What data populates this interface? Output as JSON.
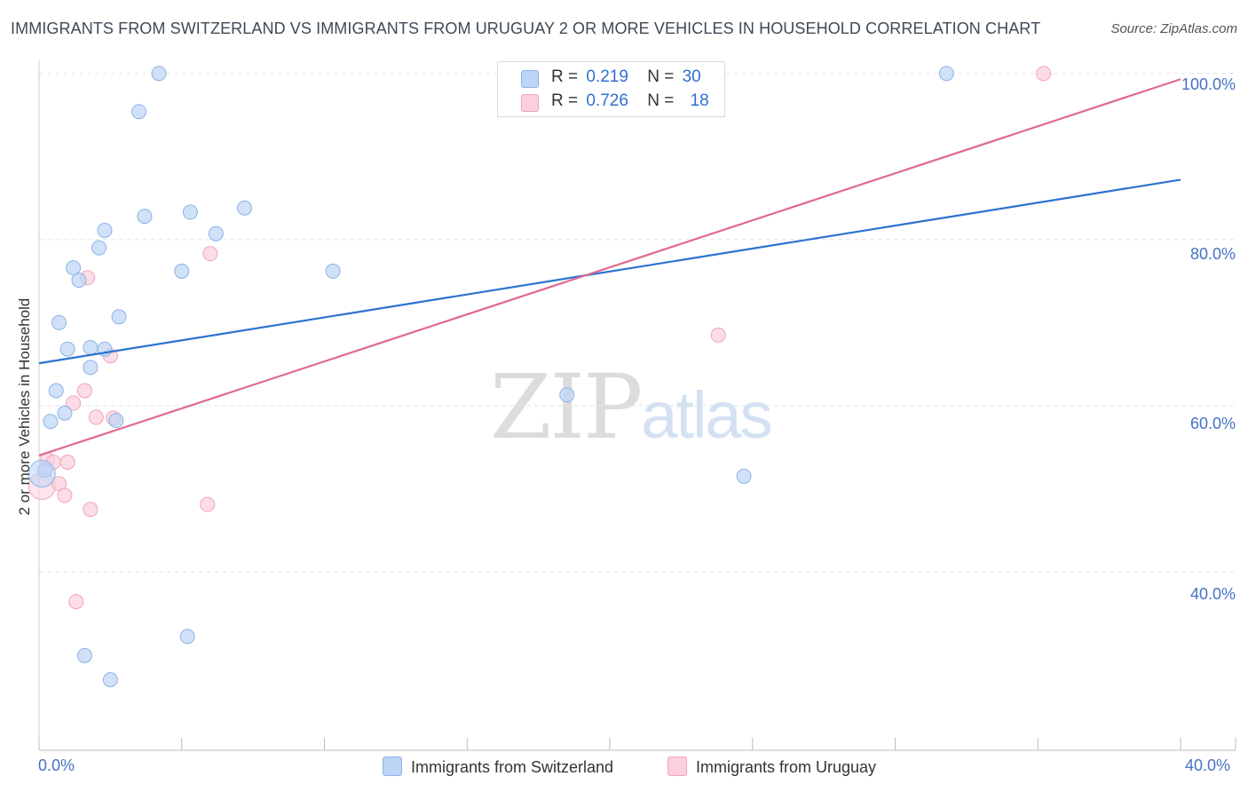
{
  "title": "IMMIGRANTS FROM SWITZERLAND VS IMMIGRANTS FROM URUGUAY 2 OR MORE VEHICLES IN HOUSEHOLD CORRELATION CHART",
  "source": "Source: ZipAtlas.com",
  "watermark": {
    "zip": "ZIP",
    "atlas": "atlas"
  },
  "legend": {
    "r_label": "R =",
    "n_label": "N =",
    "switzerland": {
      "r": "0.219",
      "n": "30"
    },
    "uruguay": {
      "r": "0.726",
      "n": "18"
    }
  },
  "colors": {
    "switzerland_fill": "#bcd4f5",
    "switzerland_stroke": "#8db3e6",
    "switzerland_line": "#2b72d0",
    "uruguay_fill": "#fbcfdc",
    "uruguay_stroke": "#f0a3bb",
    "uruguay_line": "#e0698f",
    "tick_text": "#4472c4",
    "grid": "#e3e3e3"
  },
  "chart_data": {
    "type": "scatter",
    "title": "IMMIGRANTS FROM SWITZERLAND VS IMMIGRANTS FROM URUGUAY 2 OR MORE VEHICLES IN HOUSEHOLD CORRELATION CHART",
    "xlabel": "",
    "ylabel": "2 or more Vehicles in Household",
    "xlim": [
      0,
      40
    ],
    "ylim": [
      18.5,
      102
    ],
    "x_ticks": [
      {
        "value": 0,
        "label": "0.0%"
      },
      {
        "value": 40,
        "label": "40.0%"
      }
    ],
    "y_ticks": [
      {
        "value": 40,
        "label": "40.0%"
      },
      {
        "value": 60,
        "label": "60.0%"
      },
      {
        "value": 80,
        "label": "80.0%"
      },
      {
        "value": 100,
        "label": "100.0%"
      }
    ],
    "grid": true,
    "legend_position": "bottom",
    "series": [
      {
        "name": "Immigrants from Switzerland",
        "r": 0.219,
        "n": 30,
        "trend": {
          "x": [
            0,
            40
          ],
          "y": [
            65.1,
            87.2
          ]
        },
        "points": [
          {
            "x": 0.2,
            "y": 52.2
          },
          {
            "x": 0.4,
            "y": 58.1
          },
          {
            "x": 0.6,
            "y": 61.8
          },
          {
            "x": 0.9,
            "y": 59.1
          },
          {
            "x": 0.7,
            "y": 70.0
          },
          {
            "x": 1.0,
            "y": 66.8
          },
          {
            "x": 1.2,
            "y": 76.6
          },
          {
            "x": 1.4,
            "y": 75.1
          },
          {
            "x": 1.8,
            "y": 67.0
          },
          {
            "x": 1.8,
            "y": 64.6
          },
          {
            "x": 2.1,
            "y": 79.0
          },
          {
            "x": 2.3,
            "y": 81.1
          },
          {
            "x": 2.3,
            "y": 66.8
          },
          {
            "x": 2.8,
            "y": 70.7
          },
          {
            "x": 2.7,
            "y": 58.2
          },
          {
            "x": 3.5,
            "y": 95.4
          },
          {
            "x": 3.7,
            "y": 82.8
          },
          {
            "x": 4.2,
            "y": 100.0
          },
          {
            "x": 5.0,
            "y": 76.2
          },
          {
            "x": 5.3,
            "y": 83.3
          },
          {
            "x": 6.2,
            "y": 80.7
          },
          {
            "x": 7.2,
            "y": 83.8
          },
          {
            "x": 10.3,
            "y": 76.2
          },
          {
            "x": 18.5,
            "y": 61.3
          },
          {
            "x": 24.7,
            "y": 51.5
          },
          {
            "x": 31.8,
            "y": 100.0
          },
          {
            "x": 1.6,
            "y": 29.9
          },
          {
            "x": 2.5,
            "y": 27.0
          },
          {
            "x": 5.2,
            "y": 32.2
          },
          {
            "x": 0.1,
            "y": 51.8
          }
        ]
      },
      {
        "name": "Immigrants from Uruguay",
        "r": 0.726,
        "n": 18,
        "trend": {
          "x": [
            0,
            40
          ],
          "y": [
            54.0,
            99.3
          ]
        },
        "points": [
          {
            "x": 0.1,
            "y": 50.3
          },
          {
            "x": 0.3,
            "y": 53.5
          },
          {
            "x": 0.5,
            "y": 53.2
          },
          {
            "x": 0.7,
            "y": 50.6
          },
          {
            "x": 0.9,
            "y": 49.2
          },
          {
            "x": 1.0,
            "y": 53.2
          },
          {
            "x": 1.2,
            "y": 60.3
          },
          {
            "x": 1.6,
            "y": 61.8
          },
          {
            "x": 1.7,
            "y": 75.4
          },
          {
            "x": 1.8,
            "y": 47.5
          },
          {
            "x": 2.0,
            "y": 58.6
          },
          {
            "x": 2.5,
            "y": 66.0
          },
          {
            "x": 2.6,
            "y": 58.5
          },
          {
            "x": 1.3,
            "y": 36.4
          },
          {
            "x": 5.9,
            "y": 48.1
          },
          {
            "x": 6.0,
            "y": 78.3
          },
          {
            "x": 23.8,
            "y": 68.5
          },
          {
            "x": 35.2,
            "y": 100.0
          }
        ]
      }
    ]
  }
}
